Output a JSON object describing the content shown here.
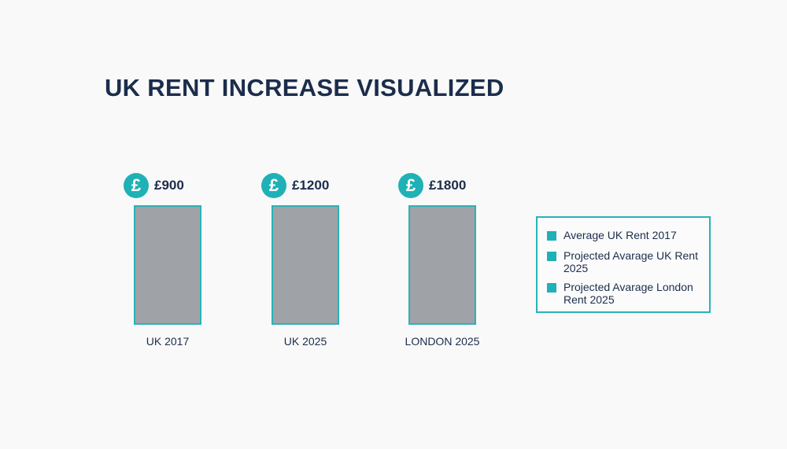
{
  "title": "UK RENT INCREASE VISUALIZED",
  "currency_symbol": "£",
  "items": [
    {
      "value": "£900",
      "category": "UK 2017"
    },
    {
      "value": "£1200",
      "category": "UK 2025"
    },
    {
      "value": "£1800",
      "category": "LONDON 2025"
    }
  ],
  "legend": [
    "Average UK Rent 2017",
    "Projected Avarage UK Rent 2025",
    "Projected Avarage London Rent 2025"
  ]
}
